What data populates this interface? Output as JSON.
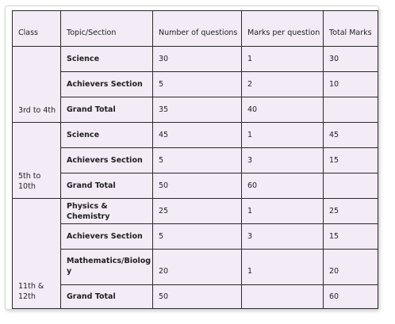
{
  "table": {
    "headers": [
      "Class",
      "Topic/Section",
      "Number of questions",
      "Marks per question",
      "Total Marks"
    ],
    "groups": [
      {
        "class": "3rd to 4th",
        "rows": [
          {
            "topic": "Science",
            "questions": "30",
            "marks_per_question": "1",
            "total": "30"
          },
          {
            "topic": "Achievers Section",
            "questions": "5",
            "marks_per_question": "2",
            "total": "10"
          },
          {
            "topic": "Grand Total",
            "questions": "35",
            "marks_per_question": "40",
            "total": ""
          }
        ]
      },
      {
        "class": "5th to 10th",
        "rows": [
          {
            "topic": "Science",
            "questions": "45",
            "marks_per_question": "1",
            "total": "45"
          },
          {
            "topic": "Achievers Section",
            "questions": "5",
            "marks_per_question": "3",
            "total": "15"
          },
          {
            "topic": "Grand Total",
            "questions": "50",
            "marks_per_question": "60",
            "total": ""
          }
        ]
      },
      {
        "class": "11th & 12th",
        "rows": [
          {
            "topic": "Physics & Chemistry",
            "questions": "25",
            "marks_per_question": "1",
            "total": "25"
          },
          {
            "topic": "Achievers Section",
            "questions": "5",
            "marks_per_question": "3",
            "total": "15"
          },
          {
            "topic": "Mathematics/Biolog y",
            "questions": "20",
            "marks_per_question": "1",
            "total": "20"
          },
          {
            "topic": "Grand Total",
            "questions": "50",
            "marks_per_question": "",
            "total": "60"
          }
        ]
      }
    ]
  }
}
